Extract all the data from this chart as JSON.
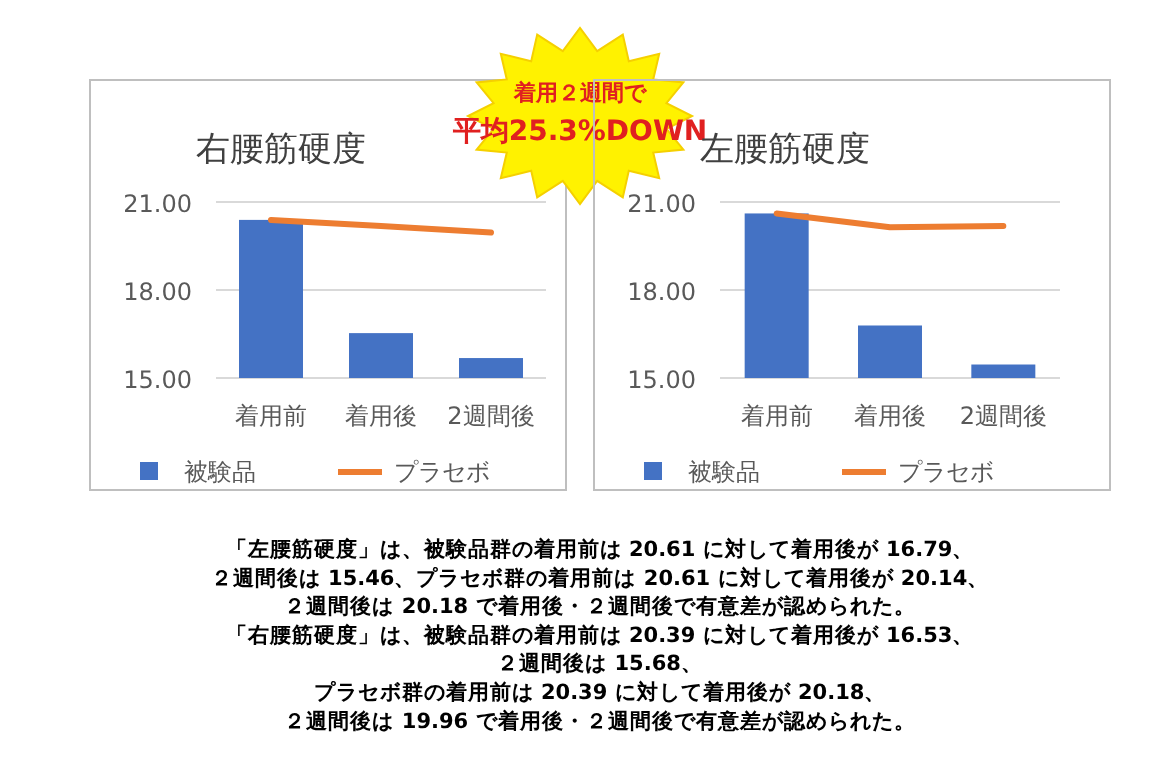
{
  "chart_data": [
    {
      "type": "bar",
      "title": "右腰筋硬度",
      "categories": [
        "着用前",
        "着用後",
        "2週間後"
      ],
      "series": [
        {
          "name": "被験品",
          "color": "#4472c4",
          "values": [
            20.39,
            16.53,
            15.68
          ]
        },
        {
          "name": "プラセボ",
          "type": "line",
          "color": "#ed7d31",
          "values": [
            20.39,
            20.18,
            19.96
          ]
        }
      ],
      "ylim": [
        15,
        21
      ],
      "yticks": [
        {
          "value": 15,
          "label": "15.00"
        },
        {
          "value": 18,
          "label": "18.00"
        },
        {
          "value": 21,
          "label": "21.00"
        }
      ],
      "grid": "y",
      "legend": "bottom",
      "annotations": [
        "着用２週間で",
        "平均25.3%DOWN"
      ]
    },
    {
      "type": "bar",
      "title": "左腰筋硬度",
      "categories": [
        "着用前",
        "着用後",
        "2週間後"
      ],
      "series": [
        {
          "name": "被験品",
          "color": "#4472c4",
          "values": [
            20.61,
            16.79,
            15.46
          ]
        },
        {
          "name": "プラセボ",
          "type": "line",
          "color": "#ed7d31",
          "values": [
            20.61,
            20.14,
            20.18
          ]
        }
      ],
      "ylim": [
        15,
        21
      ],
      "yticks": [
        {
          "value": 15,
          "label": "15.00"
        },
        {
          "value": 18,
          "label": "18.00"
        },
        {
          "value": 21,
          "label": "21.00"
        }
      ],
      "grid": "y",
      "legend": "bottom",
      "annotations": [
        "「左腰筋硬度」は、被験品群の着用前は 20.61 に対して着用後が 16.79、",
        "２週間後は 15.46、プラセボ群の着用前は 20.61 に対して着用後が 20.14、",
        "２週間後は 20.18 で着用後・２週間後で有意差が認められた。",
        "「右腰筋硬度」は、被験品群の着用前は 20.39 に対して着用後が 16.53、",
        "２週間後は 15.68、",
        "プラセボ群の着用前は 20.39 に対して着用後が 20.18、",
        "２週間後は 19.96 で着用後・２週間後で有意差が認められた。"
      ]
    }
  ]
}
